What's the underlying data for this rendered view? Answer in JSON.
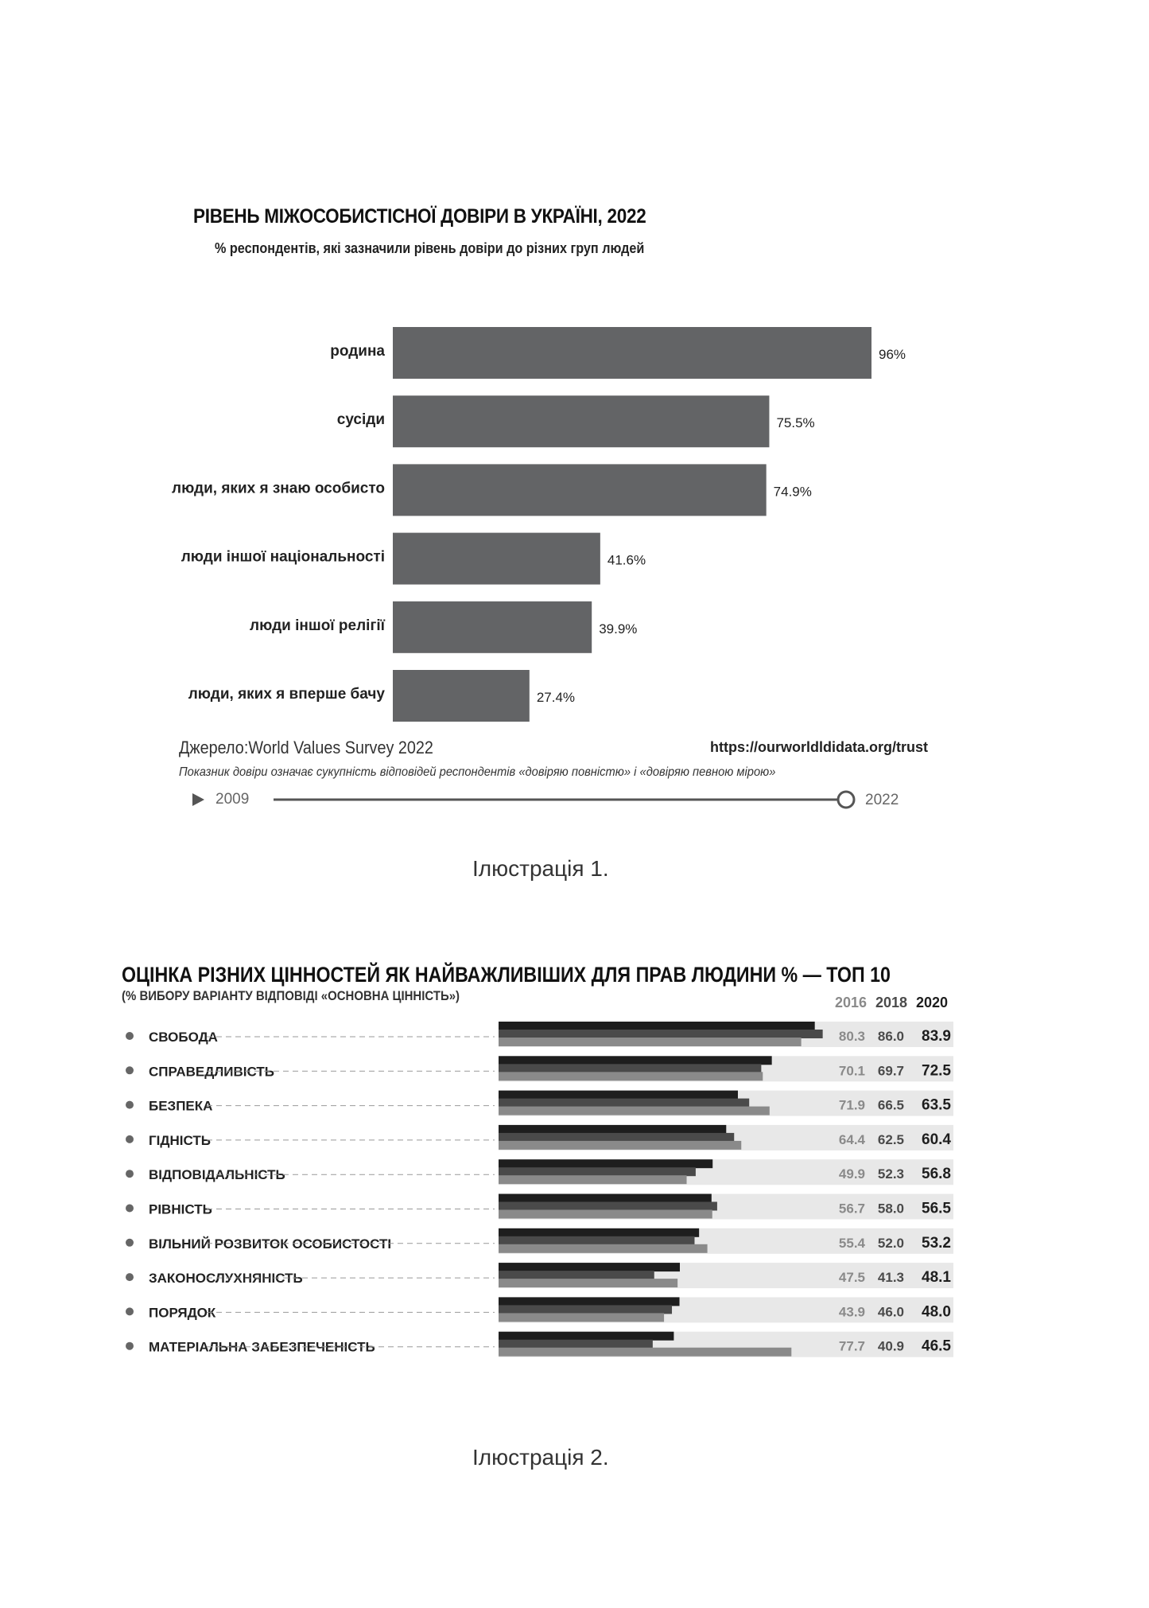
{
  "chart_data": [
    {
      "type": "bar",
      "title": "РІВЕНЬ МІЖОСОБИСТІСНОЇ ДОВІРИ В УКРАЇНІ, 2022",
      "subtitle": "% респондентів, які зазначили рівень довіри до різних груп людей",
      "categories": [
        "родина",
        "сусіди",
        "люди, яких я знаю особисто",
        "люди іншої національності",
        "люди іншої релігії",
        "люди, яких я вперше бачу"
      ],
      "values": [
        96,
        75.5,
        74.9,
        41.6,
        39.9,
        27.4
      ],
      "value_labels": [
        "96%",
        "75.5%",
        "74.9%",
        "41.6%",
        "39.9%",
        "27.4%"
      ],
      "xlim": [
        0,
        100
      ],
      "orientation": "horizontal",
      "bar_color": "#636466",
      "source": "Джерело:World Values Survey 2022",
      "url": "https://ourworldldidata.org/trust",
      "note": "Показник довіри означає сукупність відповідей респондентів «довіряю повністю» і «довіряю певною мірою»",
      "timeline": {
        "play_icon": "play-icon",
        "start": "2009",
        "end": "2022",
        "position": 1.0
      },
      "grid": false
    },
    {
      "type": "bar",
      "title": "ОЦІНКА РІЗНИХ ЦІННОСТЕЙ ЯК НАЙВАЖЛИВІШИХ ДЛЯ ПРАВ ЛЮДИНИ % — ТОП 10",
      "subtitle": "(% ВИБОРУ ВАРІАНТУ ВІДПОВІДІ «ОСНОВНА ЦІННІСТЬ»)",
      "orientation": "horizontal",
      "categories": [
        "СВОБОДА",
        "СПРАВЕДЛИВІСТЬ",
        "БЕЗПЕКА",
        "ГІДНІСТЬ",
        "ВІДПОВІДАЛЬНІСТЬ",
        "РІВНІСТЬ",
        "ВІЛЬНИЙ РОЗВИТОК ОСОБИСТОСТІ",
        "ЗАКОНОСЛУХНЯНІСТЬ",
        "ПОРЯДОК",
        "МАТЕРІАЛЬНА ЗАБЕЗПЕЧЕНІСТЬ"
      ],
      "series": [
        {
          "name": "2016",
          "color": "#8a8a8a",
          "values": [
            80.3,
            70.1,
            71.9,
            64.4,
            49.9,
            56.7,
            55.4,
            47.5,
            43.9,
            77.7
          ],
          "labels": [
            "80.3",
            "70.1",
            "71.9",
            "64.4",
            "49.9",
            "56.7",
            "55.4",
            "47.5",
            "43.9",
            "77.7"
          ]
        },
        {
          "name": "2018",
          "color": "#4a4a4a",
          "values": [
            86.0,
            69.7,
            66.5,
            62.5,
            52.3,
            58.0,
            52.0,
            41.3,
            46.0,
            40.9
          ],
          "labels": [
            "86.0",
            "69.7",
            "66.5",
            "62.5",
            "52.3",
            "58.0",
            "52.0",
            "41.3",
            "46.0",
            "40.9"
          ]
        },
        {
          "name": "2020",
          "color": "#1e1e1e",
          "values": [
            83.9,
            72.5,
            63.5,
            60.4,
            56.8,
            56.5,
            53.2,
            48.1,
            48.0,
            46.5
          ],
          "labels": [
            "83.9",
            "72.5",
            "63.5",
            "60.4",
            "56.8",
            "56.5",
            "53.2",
            "48.1",
            "48.0",
            "46.5"
          ]
        }
      ],
      "background_band_color": "#e8e8e8",
      "xlim": [
        0,
        100
      ],
      "grid": false
    }
  ],
  "captions": [
    "Ілюстрація 1.",
    "Ілюстрація 2."
  ]
}
